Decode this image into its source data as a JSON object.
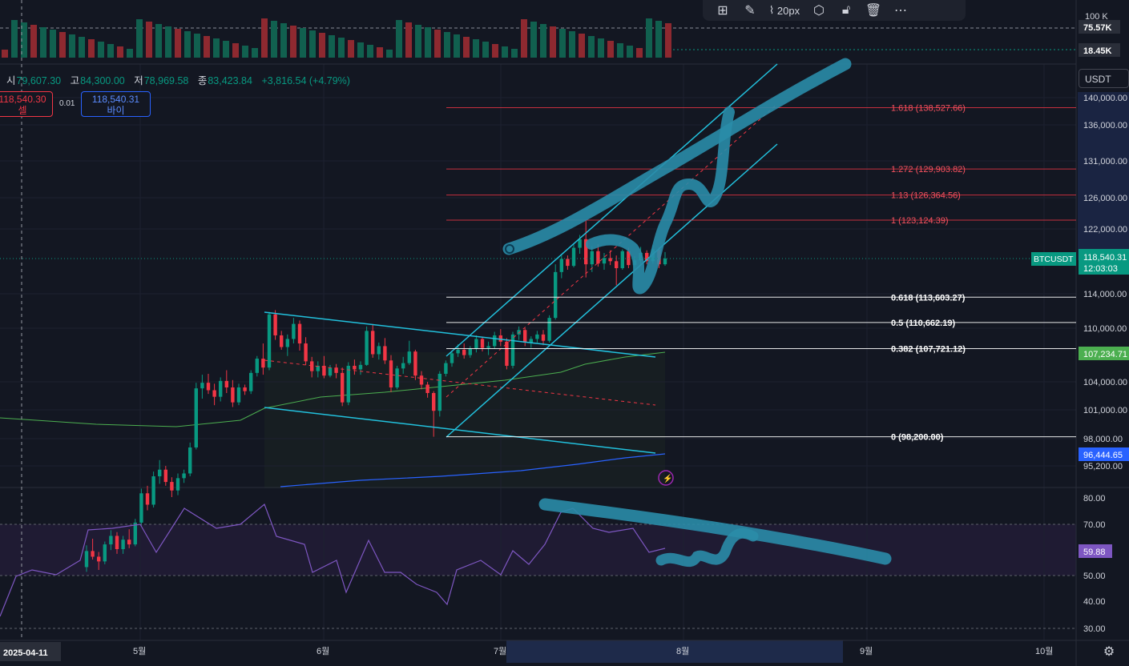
{
  "symbol": "BTCUSDT",
  "ohlc": {
    "open_label": "시",
    "open": "79,607.30",
    "high_label": "고",
    "high": "84,300.00",
    "low_label": "저",
    "low": "78,969.58",
    "close_label": "종",
    "close": "83,423.84",
    "change": "+3,816.54 (+4.79%)"
  },
  "order": {
    "sell_price": "118,540.30",
    "sell_label": "셀",
    "spread": "0.01",
    "buy_price": "118,540.31",
    "buy_label": "바이"
  },
  "toolbar": {
    "brush_size": "20px"
  },
  "currency": "USDT",
  "colors": {
    "up": "#089981",
    "down": "#f23645",
    "channel": "#22c1dd",
    "drawing": "#2a8ca8",
    "ema_green": "#4caf50",
    "ema_blue": "#2962ff",
    "rsi": "#7e57c2"
  },
  "volume_axis": {
    "ticks": [
      "100 K",
      "75.57K",
      "18.45K"
    ]
  },
  "price_axis": {
    "ticks": [
      "140,000.00",
      "136,000.00",
      "131,000.00",
      "126,000.00",
      "122,000.00",
      "118,540.31",
      "114,000.00",
      "110,000.00",
      "107,234.71",
      "104,000.00",
      "101,000.00",
      "98,000.00",
      "96,444.65",
      "95,200.00"
    ],
    "last_price": "118,540.31",
    "countdown": "12:03:03",
    "ema_green_value": "107,234.71",
    "ema_blue_value": "96,444.65"
  },
  "fib_levels": [
    {
      "label": "1.618 (138,527.66)",
      "price": 138527.66
    },
    {
      "label": "1.272 (129,903.82)",
      "price": 129903.82
    },
    {
      "label": "1.13 (126,364.56)",
      "price": 126364.56
    },
    {
      "label": "1 (123,124.39)",
      "price": 123124.39
    },
    {
      "label": "0.618 (113,603.27)",
      "price": 113603.27
    },
    {
      "label": "0.5 (110,662.19)",
      "price": 110662.19
    },
    {
      "label": "0.382 (107,721.12)",
      "price": 107721.12
    },
    {
      "label": "0 (98,200.00)",
      "price": 98200.0
    }
  ],
  "rsi_axis": {
    "ticks": [
      "80.00",
      "70.00",
      "60.00",
      "50.00",
      "40.00",
      "30.00"
    ],
    "current": "59.88"
  },
  "time_axis": {
    "labels": [
      "2025-04-11",
      "5월",
      "6월",
      "7월",
      "8월",
      "9월",
      "10월"
    ]
  },
  "chart_data": {
    "type": "candlestick",
    "price_series": [
      [
        84500,
        86800,
        84000,
        86200
      ],
      [
        86200,
        87500,
        85300,
        85600
      ],
      [
        85600,
        86100,
        84200,
        85100
      ],
      [
        85100,
        87200,
        84800,
        86900
      ],
      [
        86900,
        88400,
        86300,
        87800
      ],
      [
        87800,
        88200,
        85900,
        86400
      ],
      [
        86400,
        87800,
        85900,
        87400
      ],
      [
        87400,
        88500,
        86500,
        86900
      ],
      [
        86900,
        89600,
        86700,
        89200
      ],
      [
        89200,
        92800,
        88900,
        92300
      ],
      [
        92300,
        93100,
        90500,
        91100
      ],
      [
        91100,
        94600,
        90800,
        94100
      ],
      [
        94100,
        95800,
        93300,
        94800
      ],
      [
        94800,
        95200,
        93100,
        93500
      ],
      [
        93500,
        94000,
        91900,
        92600
      ],
      [
        92600,
        94400,
        92100,
        93900
      ],
      [
        93900,
        94800,
        93400,
        94400
      ],
      [
        94400,
        97600,
        94100,
        97100
      ],
      [
        97100,
        103900,
        96900,
        103300
      ],
      [
        103300,
        104800,
        102200,
        103900
      ],
      [
        103900,
        104900,
        102700,
        103100
      ],
      [
        103100,
        103800,
        101500,
        102400
      ],
      [
        102400,
        104500,
        101900,
        104100
      ],
      [
        104100,
        105300,
        102800,
        103400
      ],
      [
        103400,
        104200,
        101300,
        101800
      ],
      [
        101800,
        103800,
        101500,
        103400
      ],
      [
        103400,
        103700,
        102600,
        103000
      ],
      [
        103000,
        105300,
        102700,
        105000
      ],
      [
        105000,
        106900,
        104600,
        106600
      ],
      [
        106600,
        108300,
        104800,
        105600
      ],
      [
        105600,
        111900,
        105300,
        111600
      ],
      [
        111600,
        112100,
        108700,
        109200
      ],
      [
        109200,
        109700,
        107600,
        107900
      ],
      [
        107900,
        109300,
        106900,
        108800
      ],
      [
        108800,
        111200,
        108300,
        110500
      ],
      [
        110500,
        110900,
        107500,
        108300
      ],
      [
        108300,
        109000,
        105900,
        106300
      ],
      [
        106300,
        106800,
        104500,
        105200
      ],
      [
        105200,
        106300,
        104500,
        105800
      ],
      [
        105800,
        106900,
        104400,
        104700
      ],
      [
        104700,
        105900,
        104500,
        105600
      ],
      [
        105600,
        106000,
        104400,
        105000
      ],
      [
        105000,
        105600,
        101400,
        101800
      ],
      [
        101800,
        106200,
        101500,
        105800
      ],
      [
        105800,
        106500,
        104800,
        105400
      ],
      [
        105400,
        106300,
        104800,
        105900
      ],
      [
        105900,
        110200,
        105800,
        109700
      ],
      [
        109700,
        110400,
        106700,
        107100
      ],
      [
        107100,
        108400,
        106500,
        108000
      ],
      [
        108000,
        108900,
        106000,
        106400
      ],
      [
        106400,
        107000,
        102900,
        103400
      ],
      [
        103400,
        105800,
        103200,
        105500
      ],
      [
        105500,
        106800,
        104900,
        106100
      ],
      [
        106100,
        108600,
        105900,
        107400
      ],
      [
        107400,
        107600,
        104200,
        104700
      ],
      [
        104700,
        105200,
        103200,
        103700
      ],
      [
        103700,
        104000,
        102300,
        102800
      ],
      [
        102800,
        103000,
        98200,
        100900
      ],
      [
        100900,
        105200,
        100300,
        104900
      ],
      [
        104900,
        106400,
        104600,
        106100
      ],
      [
        106100,
        107500,
        105700,
        107200
      ],
      [
        107200,
        108200,
        106800,
        107600
      ],
      [
        107600,
        108300,
        106600,
        107000
      ],
      [
        107000,
        108000,
        106700,
        107700
      ],
      [
        107700,
        109200,
        107300,
        108800
      ],
      [
        108800,
        109000,
        107400,
        107800
      ],
      [
        107800,
        108500,
        107000,
        108000
      ],
      [
        108000,
        109600,
        107700,
        109200
      ],
      [
        109200,
        109900,
        108000,
        108500
      ],
      [
        108500,
        108900,
        105400,
        105800
      ],
      [
        105800,
        109600,
        105500,
        109300
      ],
      [
        109300,
        110200,
        108700,
        109800
      ],
      [
        109800,
        110000,
        108000,
        108400
      ],
      [
        108400,
        109100,
        107800,
        108800
      ],
      [
        108800,
        109700,
        108400,
        109300
      ],
      [
        109300,
        109800,
        108100,
        108600
      ],
      [
        108600,
        111500,
        108400,
        111200
      ],
      [
        111200,
        117800,
        111000,
        116800
      ],
      [
        116800,
        118900,
        116000,
        118500
      ],
      [
        118500,
        118900,
        117100,
        117600
      ],
      [
        117600,
        120200,
        117400,
        119800
      ],
      [
        119800,
        121300,
        119100,
        120800
      ],
      [
        120800,
        123100,
        116100,
        117800
      ],
      [
        117800,
        120000,
        116800,
        119400
      ],
      [
        119400,
        120200,
        117500,
        117900
      ],
      [
        117900,
        119200,
        117100,
        118600
      ],
      [
        118600,
        119500,
        117700,
        118200
      ],
      [
        118200,
        118900,
        115100,
        117300
      ],
      [
        117300,
        119600,
        117100,
        119400
      ],
      [
        119400,
        119800,
        117300,
        117700
      ],
      [
        117700,
        118800,
        116900,
        118300
      ],
      [
        118300,
        119900,
        117600,
        119200
      ],
      [
        119200,
        119500,
        117800,
        118200
      ],
      [
        118200,
        120100,
        117900,
        119600
      ],
      [
        119600,
        119900,
        117300,
        117800
      ],
      [
        117800,
        119300,
        117600,
        118540
      ]
    ],
    "volume_range_K": [
      0,
      100
    ],
    "rsi_last": 59.88
  }
}
